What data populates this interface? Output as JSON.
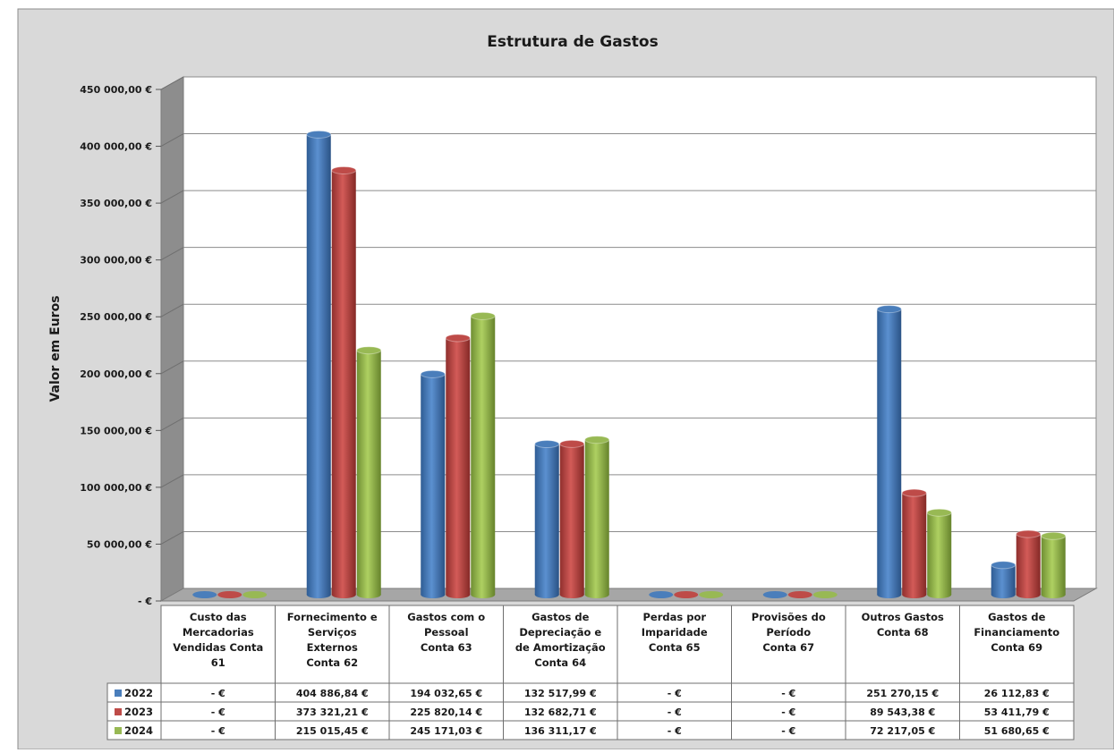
{
  "chart_data": {
    "type": "bar",
    "title": "Estrutura de Gastos",
    "ylabel": "Valor em Euros",
    "xlabel": "",
    "ylim": [
      0,
      450000
    ],
    "yticks": [
      {
        "value": 0,
        "label": "-   €"
      },
      {
        "value": 50000,
        "label": "50 000,00 €"
      },
      {
        "value": 100000,
        "label": "100 000,00 €"
      },
      {
        "value": 150000,
        "label": "150 000,00 €"
      },
      {
        "value": 200000,
        "label": "200 000,00 €"
      },
      {
        "value": 250000,
        "label": "250 000,00 €"
      },
      {
        "value": 300000,
        "label": "300 000,00 €"
      },
      {
        "value": 350000,
        "label": "350 000,00 €"
      },
      {
        "value": 400000,
        "label": "400 000,00 €"
      },
      {
        "value": 450000,
        "label": "450 000,00 €"
      }
    ],
    "grid": true,
    "legend": "data-table",
    "categories": [
      [
        "Custo das",
        "Mercadorias",
        "Vendidas Conta",
        "61"
      ],
      [
        "Fornecimento e",
        "Serviços",
        "Externos",
        "Conta 62"
      ],
      [
        "Gastos com o",
        "Pessoal",
        "Conta 63"
      ],
      [
        "Gastos de",
        "Depreciação e",
        "de Amortização",
        "Conta 64"
      ],
      [
        "Perdas por",
        "Imparidade",
        "Conta 65"
      ],
      [
        "Provisões do",
        "Período",
        "Conta 67"
      ],
      [
        "Outros Gastos",
        "Conta 68"
      ],
      [
        "Gastos de",
        "Financiamento",
        "Conta 69"
      ]
    ],
    "series": [
      {
        "name": "2022",
        "color": "#4a7ebb",
        "values": [
          0,
          404886.84,
          194032.65,
          132517.99,
          0,
          0,
          251270.15,
          26112.83
        ],
        "labels": [
          "-   €",
          "404 886,84 €",
          "194 032,65 €",
          "132 517,99 €",
          "-   €",
          "-   €",
          "251 270,15 €",
          "26 112,83 €"
        ]
      },
      {
        "name": "2023",
        "color": "#be4b48",
        "values": [
          0,
          373321.21,
          225820.14,
          132682.71,
          0,
          0,
          89543.38,
          53411.79
        ],
        "labels": [
          "-   €",
          "373 321,21 €",
          "225 820,14 €",
          "132 682,71 €",
          "-   €",
          "-   €",
          "89 543,38 €",
          "53 411,79 €"
        ]
      },
      {
        "name": "2024",
        "color": "#98b954",
        "values": [
          0,
          215015.45,
          245171.03,
          136311.17,
          0,
          0,
          72217.05,
          51680.65
        ],
        "labels": [
          "-   €",
          "215 015,45 €",
          "245 171,03 €",
          "136 311,17 €",
          "-   €",
          "-   €",
          "72 217,05 €",
          "51 680,65 €"
        ]
      }
    ]
  }
}
